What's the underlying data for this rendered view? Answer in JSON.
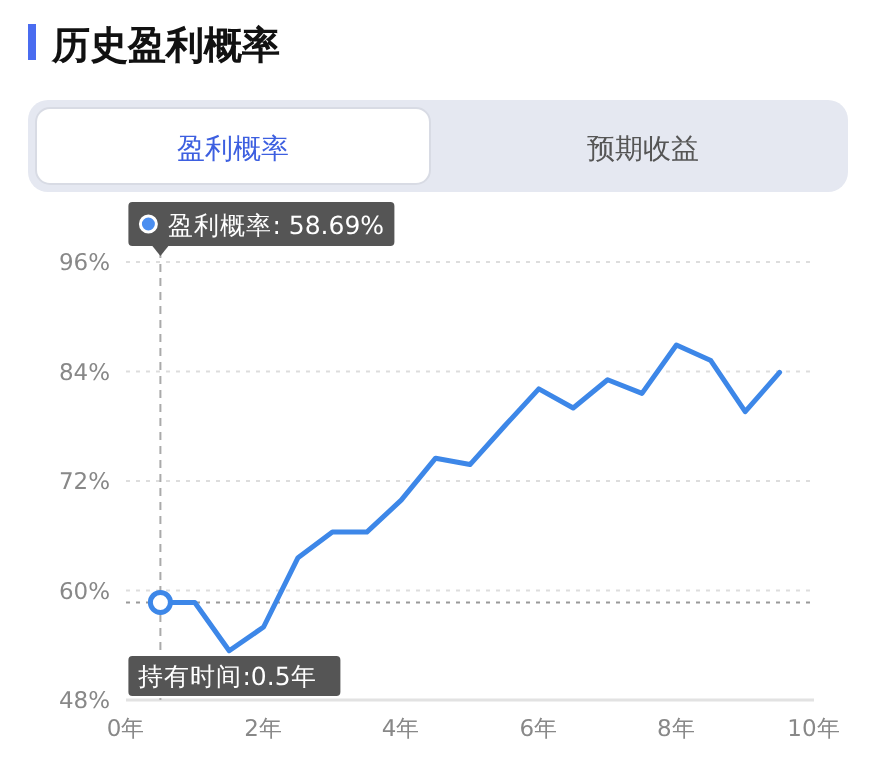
{
  "chart_data": {
    "type": "line",
    "title": "历史盈利概率",
    "x": [
      0.5,
      1,
      1.5,
      2,
      2.5,
      3,
      3.5,
      4,
      4.5,
      5,
      5.5,
      6,
      6.5,
      7,
      7.5,
      8,
      8.5,
      9,
      9.5
    ],
    "series": [
      {
        "color": "#3d87e8",
        "values": [
          58.69,
          58.69,
          53.4,
          56.0,
          63.6,
          66.4,
          66.4,
          69.9,
          74.5,
          73.8,
          78.0,
          82.1,
          80.0,
          83.1,
          81.6,
          86.9,
          85.2,
          79.6,
          83.9
        ]
      },
      {
        "type": "scatter",
        "color": "#3d87e8",
        "x": [
          0.5
        ],
        "values": [
          58.69
        ],
        "marker": "circle"
      }
    ],
    "xlim": [
      0,
      10
    ],
    "xticks": [
      {
        "value": 0,
        "label": "0年"
      },
      {
        "value": 2,
        "label": "2年"
      },
      {
        "value": 4,
        "label": "4年"
      },
      {
        "value": 6,
        "label": "6年"
      },
      {
        "value": 8,
        "label": "8年"
      },
      {
        "value": 10,
        "label": "10年"
      }
    ],
    "ylim": [
      48,
      96
    ],
    "yticks": [
      {
        "value": 48,
        "label": "48%"
      },
      {
        "value": 60,
        "label": "60%"
      },
      {
        "value": 72,
        "label": "72%"
      },
      {
        "value": 84,
        "label": "84%"
      },
      {
        "value": 96,
        "label": "96%"
      }
    ],
    "grid": "y",
    "marker": "none",
    "line_style": "solid",
    "ref_lines": [
      {
        "axis": "x",
        "value": 0.5,
        "color": "#aaaaaa",
        "line_style": "dashed"
      },
      {
        "axis": "y",
        "value": 58.69,
        "color": "#999999",
        "line_style": "dotted"
      }
    ],
    "annotations": [
      "盈利概率",
      "预期收益",
      "盈利概率: 58.69%",
      {
        "text": "持有时间:0.5年",
        "x": 0.5
      }
    ]
  }
}
